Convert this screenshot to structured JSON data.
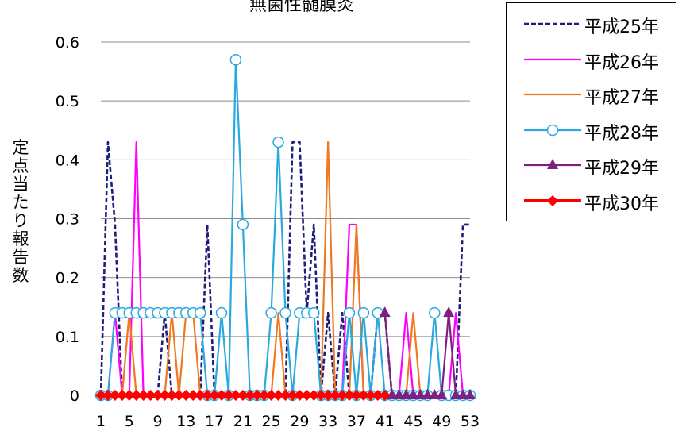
{
  "chart_data": {
    "type": "line",
    "title": "無菌性髄膜炎",
    "xlabel": "",
    "ylabel": "定点当たり報告数",
    "xlim": [
      1,
      53
    ],
    "ylim": [
      0,
      0.6
    ],
    "x_tick_labels": [
      "1",
      "5",
      "9",
      "13",
      "17",
      "21",
      "25",
      "29",
      "33",
      "37",
      "41",
      "45",
      "49",
      "53"
    ],
    "y_tick_labels": [
      "0",
      "0.1",
      "0.2",
      "0.3",
      "0.4",
      "0.5",
      "0.6"
    ],
    "grid": true,
    "legend_position": "right",
    "series": [
      {
        "name": "平成25年",
        "color": "#1f1f7a",
        "style": "dashed",
        "marker": "none",
        "values": [
          0,
          0.43,
          0.29,
          0,
          0,
          0,
          0,
          0,
          0,
          0.14,
          0,
          0,
          0,
          0,
          0,
          0.29,
          0,
          0,
          0,
          0,
          0,
          0,
          0,
          0,
          0,
          0,
          0,
          0.43,
          0.43,
          0.14,
          0.29,
          0,
          0.14,
          0,
          0.14,
          0,
          0,
          0,
          0,
          0.14,
          0.14,
          0,
          0,
          0,
          0,
          0,
          0,
          0,
          0,
          0,
          0,
          0.29,
          0.29
        ]
      },
      {
        "name": "平成26年",
        "color": "#ff00ff",
        "style": "solid",
        "marker": "none",
        "values": [
          0,
          0,
          0.14,
          0,
          0,
          0.43,
          0,
          0,
          0,
          0,
          0,
          0,
          0,
          0,
          0,
          0,
          0,
          0,
          0,
          0,
          0,
          0,
          0,
          0,
          0,
          0,
          0,
          0,
          0,
          0,
          0,
          0,
          0,
          0,
          0,
          0.29,
          0.29,
          0,
          0,
          0,
          0,
          0,
          0,
          0.14,
          0,
          0,
          0,
          0,
          0,
          0,
          0.14,
          0,
          0
        ]
      },
      {
        "name": "平成27年",
        "color": "#f07820",
        "style": "solid",
        "marker": "none",
        "values": [
          0,
          0,
          0,
          0,
          0.14,
          0,
          0,
          0,
          0,
          0,
          0.14,
          0,
          0.14,
          0.14,
          0,
          0,
          0,
          0,
          0,
          0,
          0,
          0,
          0,
          0,
          0,
          0.14,
          0,
          0,
          0,
          0,
          0,
          0,
          0.43,
          0,
          0,
          0,
          0.29,
          0,
          0,
          0,
          0,
          0,
          0,
          0,
          0.14,
          0,
          0,
          0,
          0,
          0,
          0,
          0,
          0
        ]
      },
      {
        "name": "平成28年",
        "color": "#2aa8e0",
        "style": "solid",
        "marker": "circle",
        "values": [
          0,
          0,
          0.14,
          0.14,
          0.14,
          0.14,
          0.14,
          0.14,
          0.14,
          0.14,
          0.14,
          0.14,
          0.14,
          0.14,
          0.14,
          0,
          0,
          0.14,
          0,
          0.57,
          0.29,
          0,
          0,
          0,
          0.14,
          0.43,
          0.14,
          0,
          0.14,
          0.14,
          0.14,
          0,
          0,
          0,
          0,
          0.14,
          0,
          0.14,
          0,
          0.14,
          0,
          0,
          0,
          0,
          0,
          0,
          0,
          0.14,
          0,
          0,
          0,
          0,
          0
        ]
      },
      {
        "name": "平成29年",
        "color": "#7f1f7f",
        "style": "solid",
        "marker": "triangle",
        "values": [
          null,
          null,
          null,
          null,
          null,
          null,
          null,
          null,
          null,
          null,
          null,
          null,
          null,
          null,
          null,
          null,
          null,
          null,
          null,
          null,
          null,
          null,
          null,
          null,
          null,
          null,
          null,
          null,
          null,
          null,
          null,
          null,
          null,
          null,
          null,
          null,
          null,
          null,
          null,
          null,
          0.14,
          0,
          0,
          0,
          0,
          0,
          0,
          0,
          0,
          0.14,
          0,
          0,
          0
        ]
      },
      {
        "name": "平成30年",
        "color": "#ff0000",
        "style": "solid",
        "marker": "diamond",
        "values": [
          0,
          0,
          0,
          0,
          0,
          0,
          0,
          0,
          0,
          0,
          0,
          0,
          0,
          0,
          0,
          0,
          0,
          0,
          0,
          0,
          0,
          0,
          0,
          0,
          0,
          0,
          0,
          0,
          0,
          0,
          0,
          0,
          0,
          0,
          0,
          0,
          0,
          0,
          0,
          0,
          0,
          null,
          null,
          null,
          null,
          null,
          null,
          null,
          null,
          null,
          null,
          null,
          null
        ]
      }
    ]
  }
}
